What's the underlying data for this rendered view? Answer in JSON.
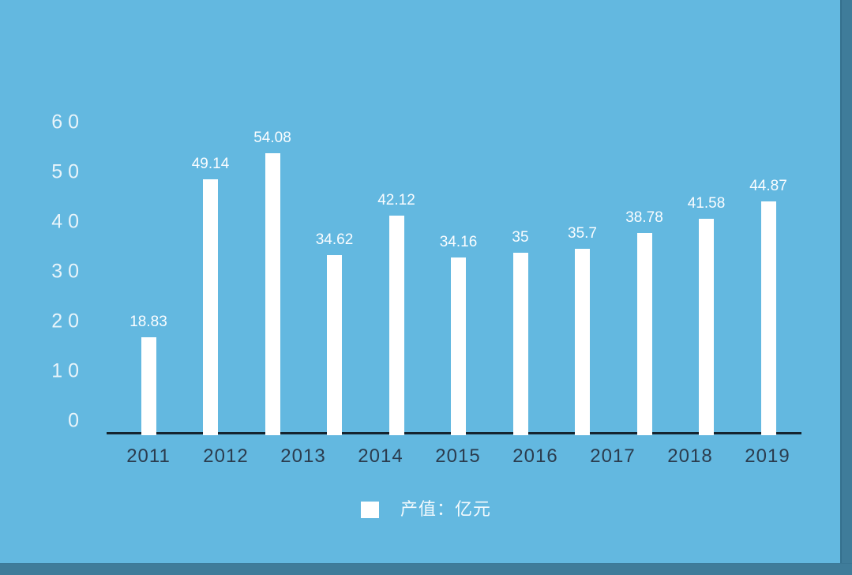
{
  "chart_data": {
    "type": "bar",
    "title": "",
    "xlabel": "",
    "ylabel": "",
    "categories": [
      "2011",
      "2012",
      "2013",
      "2014",
      "2015",
      "2016",
      "2017",
      "2018",
      "2019"
    ],
    "values": [
      18.83,
      49.14,
      54.08,
      34.62,
      42.12,
      34.16,
      35,
      35.7,
      38.78,
      41.58,
      44.87
    ],
    "bar_value_labels": [
      "18.83",
      "49.14",
      "54.08",
      "34.62",
      "42.12",
      "34.16",
      "35",
      "35.7",
      "38.78",
      "41.58",
      "44.87"
    ],
    "y_axis": {
      "ticks": [
        "60",
        "50",
        "40",
        "30",
        "20",
        "10",
        "0"
      ],
      "min": 0,
      "max": 60,
      "grid": false
    },
    "legend": {
      "position": "bottom-center",
      "items": [
        {
          "label": "产值：亿元",
          "swatch_color": "#ffffff"
        }
      ]
    },
    "layout_notes": {
      "bar_count": 11,
      "category_label_count": 9
    }
  },
  "colors": {
    "background": "#63b8e0",
    "bar": "#ffffff",
    "value_label": "#fbfdff",
    "y_tick_text": "#e9f4fa",
    "x_tick_text": "#2b3c4e",
    "axis_line": "#15242f",
    "edge_shadow": "#3f7c9a",
    "legend_text": "#f4fafd"
  }
}
